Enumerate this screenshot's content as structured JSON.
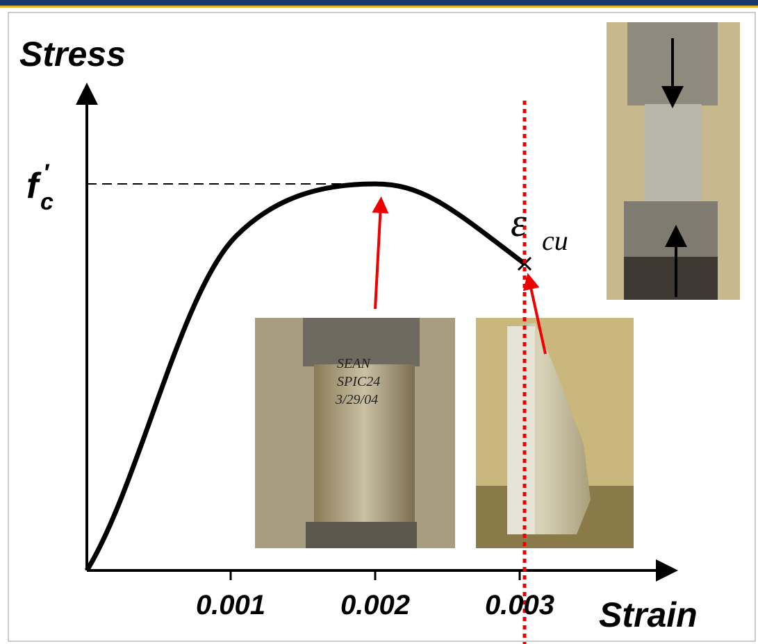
{
  "axes": {
    "y_label": "Stress",
    "x_label": "Strain",
    "x_ticks": [
      "0.001",
      "0.002",
      "0.003"
    ]
  },
  "peak_label": {
    "base": "f",
    "prime": "′",
    "sub": "c"
  },
  "ultimate_label": {
    "base": "ε",
    "sub": "cu"
  },
  "specimen_note": [
    "SEAN",
    "SPIC24",
    "3/29/04"
  ]
}
